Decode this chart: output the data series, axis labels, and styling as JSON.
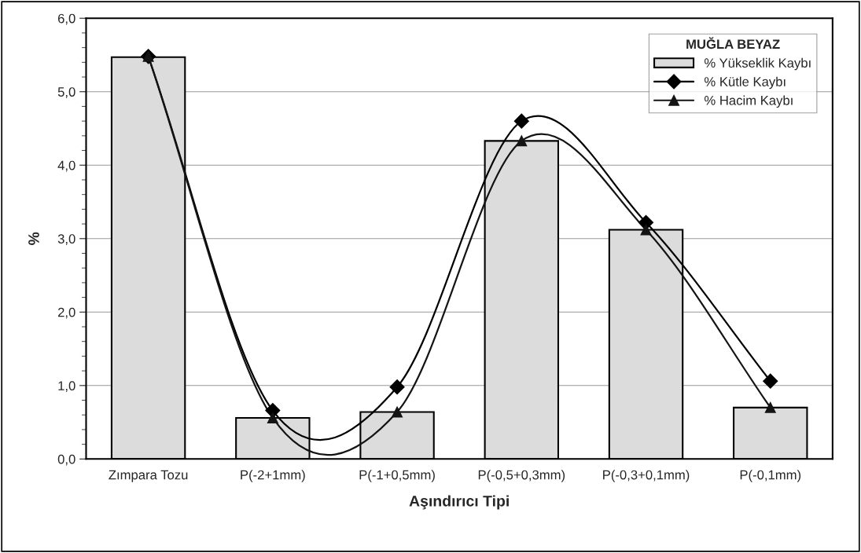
{
  "chart_data": {
    "type": "bar",
    "xlabel": "Aşındırıcı Tipi",
    "ylabel": "%",
    "legend_title": "MUĞLA BEYAZ",
    "categories": [
      "Zımpara Tozu",
      "P(-2+1mm)",
      "P(-1+0,5mm)",
      "P(-0,5+0,3mm)",
      "P(-0,3+0,1mm)",
      "P(-0,1mm)"
    ],
    "series": [
      {
        "name": "% Yükseklik Kaybı",
        "color": "#dcdcdc",
        "values": [
          5.47,
          0.56,
          0.64,
          4.33,
          3.12,
          0.7
        ]
      },
      {
        "name": "% Kütle Kaybı",
        "type": "line",
        "color": "#000000",
        "marker": "diamond",
        "values": [
          5.48,
          0.66,
          0.98,
          4.6,
          3.22,
          1.06
        ]
      },
      {
        "name": "% Hacim Kaybı",
        "type": "line",
        "color": "#141414",
        "marker": "triangle",
        "values": [
          5.48,
          0.56,
          0.64,
          4.33,
          3.12,
          0.7
        ]
      }
    ],
    "ylim": [
      0,
      6
    ],
    "yticks": [
      {
        "value": 0,
        "label": "0,0"
      },
      {
        "value": 1,
        "label": "1,0"
      },
      {
        "value": 2,
        "label": "2,0"
      },
      {
        "value": 3,
        "label": "3,0"
      },
      {
        "value": 4,
        "label": "4,0"
      },
      {
        "value": 5,
        "label": "5,0"
      },
      {
        "value": 6,
        "label": "6,0"
      }
    ],
    "grid": "y",
    "legend": "top right"
  }
}
